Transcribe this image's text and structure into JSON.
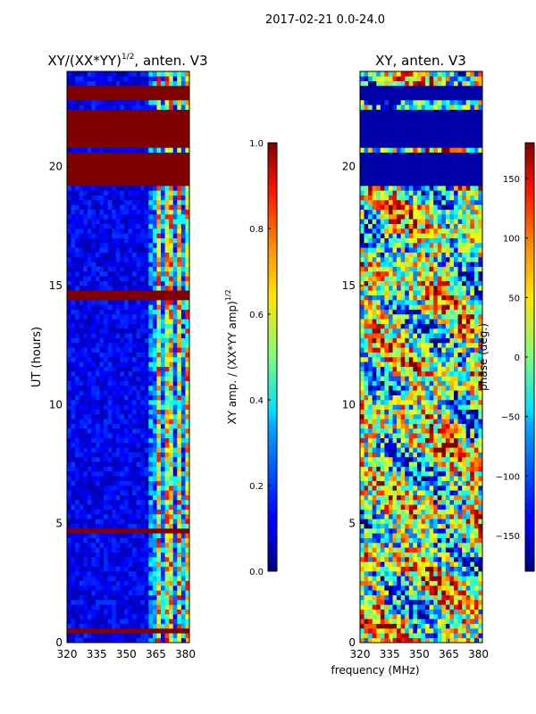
{
  "figure": {
    "suptitle": "2017-02-21 0.0-24.0",
    "shared_xlabel": "frequency (MHz)"
  },
  "chart_data": [
    {
      "type": "heatmap",
      "title": "XY/(XX*YY)",
      "title_exponent": "1/2",
      "title_suffix": ", anten. V3",
      "xlabel": "",
      "ylabel": "UT (hours)",
      "xlim": [
        320,
        382
      ],
      "ylim": [
        0,
        24
      ],
      "xticks": [
        320,
        335,
        350,
        365,
        380
      ],
      "yticks": [
        0,
        5,
        10,
        15,
        20
      ],
      "colormap": "jet",
      "colorbar": {
        "label": "XY amp. / (XX*YY amp)",
        "label_exponent": "1/2",
        "range": [
          0.0,
          1.0
        ],
        "ticks": [
          "0.0",
          "0.2",
          "0.4",
          "0.6",
          "0.8",
          "1.0"
        ],
        "tick_values": [
          0.0,
          0.2,
          0.4,
          0.6,
          0.8,
          1.0
        ]
      },
      "saturated_bands_hours": [
        [
          0.45,
          0.55
        ],
        [
          4.55,
          4.75
        ],
        [
          14.5,
          14.8
        ],
        [
          15.55,
          15.65
        ],
        [
          19.3,
          20.7
        ],
        [
          20.85,
          22.4
        ],
        [
          22.8,
          23.4
        ]
      ],
      "high_amplitude_channels_mhz": [
        366,
        370,
        373,
        377,
        381
      ],
      "grid": false
    },
    {
      "type": "heatmap",
      "title": "XY, anten. V3",
      "xlabel": "frequency (MHz)",
      "ylabel": "",
      "xlim": [
        320,
        382
      ],
      "ylim": [
        0,
        24
      ],
      "xticks": [
        320,
        335,
        350,
        365,
        380
      ],
      "yticks": [
        0,
        5,
        10,
        15,
        20
      ],
      "colormap": "jet",
      "colorbar": {
        "label": "phase (deg.)",
        "range": [
          -180,
          180
        ],
        "ticks": [
          "150",
          "100",
          "50",
          "0",
          "−50",
          "−100",
          "−150"
        ],
        "tick_values": [
          150,
          100,
          50,
          0,
          -50,
          -100,
          -150
        ]
      },
      "dark_bands_hours": [
        [
          19.3,
          20.7
        ],
        [
          20.85,
          22.4
        ],
        [
          22.8,
          23.4
        ]
      ],
      "grid": false
    }
  ]
}
